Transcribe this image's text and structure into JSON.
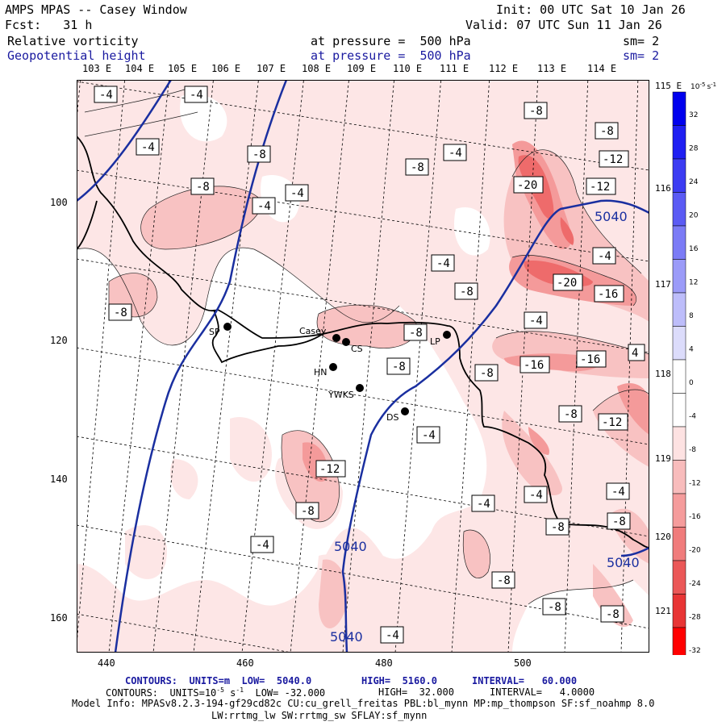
{
  "header": {
    "title": "AMPS MPAS -- Casey Window",
    "init": "Init: 00 UTC Sat 10 Jan 26",
    "fcst": "Fcst:   31 h",
    "valid": "Valid: 07 UTC Sun 11 Jan 26",
    "field1": {
      "name": "Relative vorticity",
      "level": "at pressure =  500 hPa",
      "sm": "sm= 2"
    },
    "field2": {
      "name": "Geopotential height",
      "level": "at pressure =  500 hPa",
      "sm": "sm= 2"
    }
  },
  "longitudes": [
    "103 E",
    "104 E",
    "105 E",
    "106 E",
    "107 E",
    "108 E",
    "109 E",
    "110 E",
    "111 E",
    "112 E",
    "113 E",
    "114 E"
  ],
  "right_labels": [
    "115 E",
    "116 E",
    "117 E",
    "118 E",
    "119 E",
    "120 E",
    "121 E"
  ],
  "y_ticks": [
    "100",
    "120",
    "140",
    "160"
  ],
  "x_ticks": [
    "440",
    "460",
    "480",
    "500"
  ],
  "stations": [
    {
      "code": "SP",
      "label": "SP"
    },
    {
      "code": "CASEY",
      "label": "Casey"
    },
    {
      "code": "CS",
      "label": "CS"
    },
    {
      "code": "HN",
      "label": "HN"
    },
    {
      "code": "YWKS",
      "label": "YWKS"
    },
    {
      "code": "DS",
      "label": "DS"
    },
    {
      "code": "LP",
      "label": "LP"
    }
  ],
  "vort_labels": [
    "-4",
    "-4",
    "-4",
    "-8",
    "-4",
    "-8",
    "-8",
    "-4",
    "-4",
    "-8",
    "-8",
    "-12",
    "-20",
    "-12",
    "-4",
    "-4",
    "-20",
    "-16",
    "-8",
    "-4",
    "-8",
    "-8",
    "-8",
    "-8",
    "-16",
    "-16",
    "4",
    "-8",
    "-12",
    "-4",
    "-12",
    "-8",
    "-4",
    "-4",
    "-4",
    "-8",
    "-4",
    "-8",
    "-8",
    "-8",
    "-4",
    "-8"
  ],
  "height_labels": [
    "5040",
    "5040",
    "5040",
    "5040"
  ],
  "colorbar": {
    "unit": "10",
    "unit_exp": "-5",
    "unit_suffix": "s",
    "unit_suffix_exp": "-1",
    "ticks": [
      "32",
      "28",
      "24",
      "20",
      "16",
      "12",
      "8",
      "4",
      "0",
      "-4",
      "-8",
      "-12",
      "-16",
      "-20",
      "-24",
      "-28",
      "-32"
    ],
    "colors": [
      "#0000ee",
      "#1f1ff2",
      "#3c3cf2",
      "#5b5bf4",
      "#7b7bf6",
      "#9b9bf8",
      "#bdbdfa",
      "#dcdcfb",
      "#ffffff",
      "#ffffff",
      "#fde2e2",
      "#f8bcbc",
      "#f59c9c",
      "#f07c7c",
      "#eb5858",
      "#e83535",
      "#ff0000"
    ]
  },
  "footer": {
    "c1_label": "CONTOURS:  UNITS=m  LOW=  5040.0",
    "c1_high": "HIGH=  5160.0",
    "c1_int": "INTERVAL=   60.000",
    "c2_label": "CONTOURS:  UNITS=10",
    "c2_exp": "-5",
    "c2_s": " s",
    "c2_sexp": "-1",
    "c2_low": "  LOW= -32.000",
    "c2_high": "HIGH=  32.000",
    "c2_int": "INTERVAL=   4.0000",
    "model1": "Model Info: MPASv8.2.3-194-gf29cd82c CU:cu_grell_freitas PBL:bl_mynn MP:mp_thompson SF:sf_noahmp 8.0",
    "model2": "LW:rrtmg_lw SW:rrtmg_sw SFLAY:sf_mynn"
  }
}
